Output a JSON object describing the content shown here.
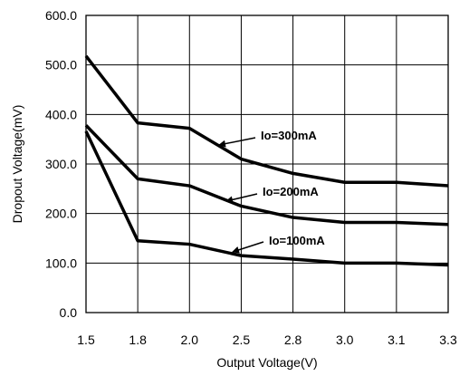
{
  "chart_data": {
    "type": "line",
    "title": "",
    "xlabel": "Output Voltage(V)",
    "ylabel": "Dropout Voltage(mV)",
    "categories": [
      "1.5",
      "1.8",
      "2.0",
      "2.5",
      "2.8",
      "3.0",
      "3.1",
      "3.3"
    ],
    "ylim": [
      0,
      600
    ],
    "yticks": [
      "0.0",
      "100.0",
      "200.0",
      "300.0",
      "400.0",
      "500.0",
      "600.0"
    ],
    "grid": true,
    "legend": "none",
    "series": [
      {
        "name": "Io=300mA",
        "values": [
          518,
          383,
          372,
          310,
          281,
          263,
          263,
          256
        ]
      },
      {
        "name": "Io=200mA",
        "values": [
          378,
          270,
          256,
          215,
          192,
          182,
          182,
          178
        ]
      },
      {
        "name": "Io=100mA",
        "values": [
          366,
          145,
          138,
          115,
          108,
          100,
          100,
          96
        ]
      }
    ]
  }
}
